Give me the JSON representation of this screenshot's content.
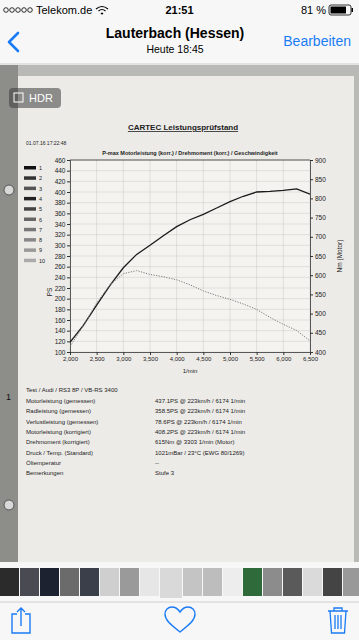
{
  "screen": {
    "status_bar": {
      "carrier": "Telekom.de",
      "time": "21:51",
      "battery": "81 %"
    },
    "nav": {
      "title": "Lauterbach (Hessen)",
      "subtitle": "Heute 18:45",
      "action": "Bearbeiten"
    },
    "badge": "HDR"
  },
  "document": {
    "header": "CARTEC Leistungsprüfstand",
    "timestamp": "01.07.16 17:22:48",
    "margin_mark": "1",
    "legend_items": [
      "1",
      "2",
      "3",
      "4",
      "5",
      "6",
      "7",
      "8",
      "9",
      "10"
    ],
    "test": "Test / Audi / RS3 8P / VB-RS 3400",
    "results": [
      {
        "label": "Motorleistung (gemessen)",
        "value": "437.1PS @ 223km/h / 6174 1/min"
      },
      {
        "label": "Radleistung (gemessen)",
        "value": "358.5PS @ 223km/h / 6174 1/min"
      },
      {
        "label": "Verlustleistung (gemessen)",
        "value": "78.6PS @ 223km/h / 6174 1/min"
      },
      {
        "label": "Motorleistung (korrigiert)",
        "value": "408.2PS @ 223km/h / 6174 1/min"
      },
      {
        "label": "Drehmoment (korrigiert)",
        "value": "615Nm @ 3303 1/min (Motor)"
      },
      {
        "label": "Druck / Temp. (Standard)",
        "value": "1021mBar / 23°C  (EWG 80/1269)"
      },
      {
        "label": "Öltemperatur",
        "value": "--"
      },
      {
        "label": "Bemerkungen",
        "value": "Stufe 3"
      }
    ]
  },
  "chart_data": {
    "type": "line",
    "title": "P-max Motorleistung (korr.) / Drehmoment (korr.) / Geschwindigkeit",
    "x_label": "1/min",
    "y_label": "PS",
    "y2_label": "Nm (Motor)",
    "x": [
      2000,
      2250,
      2500,
      2750,
      3000,
      3250,
      3500,
      3750,
      4000,
      4250,
      4500,
      4750,
      5000,
      5250,
      5500,
      5750,
      6000,
      6250,
      6500
    ],
    "xlim": [
      2000,
      6500
    ],
    "xticks": [
      {
        "value": 2000,
        "label": "2,000"
      },
      {
        "value": 2500,
        "label": "2,500"
      },
      {
        "value": 3000,
        "label": "3,000"
      },
      {
        "value": 3500,
        "label": "3,500"
      },
      {
        "value": 4000,
        "label": "4,000"
      },
      {
        "value": 4500,
        "label": "4,500"
      },
      {
        "value": 5000,
        "label": "5,000"
      },
      {
        "value": 5500,
        "label": "5,500"
      },
      {
        "value": 6000,
        "label": "6,000"
      },
      {
        "value": 6500,
        "label": "6,500"
      }
    ],
    "ylim": [
      100,
      460
    ],
    "yticks": [
      100,
      120,
      140,
      160,
      180,
      200,
      220,
      240,
      260,
      280,
      300,
      320,
      340,
      360,
      380,
      400,
      420,
      440,
      460
    ],
    "y2lim": [
      400,
      900
    ],
    "y2ticks": [
      400,
      450,
      500,
      550,
      600,
      650,
      700,
      750,
      800,
      850,
      900
    ],
    "grid": true,
    "series": [
      {
        "color": "#1a1a1a",
        "line_style": "solid",
        "values": [
          118,
          150,
          188,
          225,
          258,
          283,
          300,
          318,
          335,
          348,
          358,
          370,
          382,
          392,
          400,
          401,
          403,
          406,
          396
        ]
      },
      {
        "color": "#7a7a7a",
        "line_style": "dotted",
        "axis": "y2",
        "values": [
          414,
          468,
          528,
          575,
          604,
          612,
          602,
          596,
          588,
          575,
          559,
          547,
          537,
          525,
          511,
          490,
          472,
          456,
          429
        ]
      }
    ]
  }
}
